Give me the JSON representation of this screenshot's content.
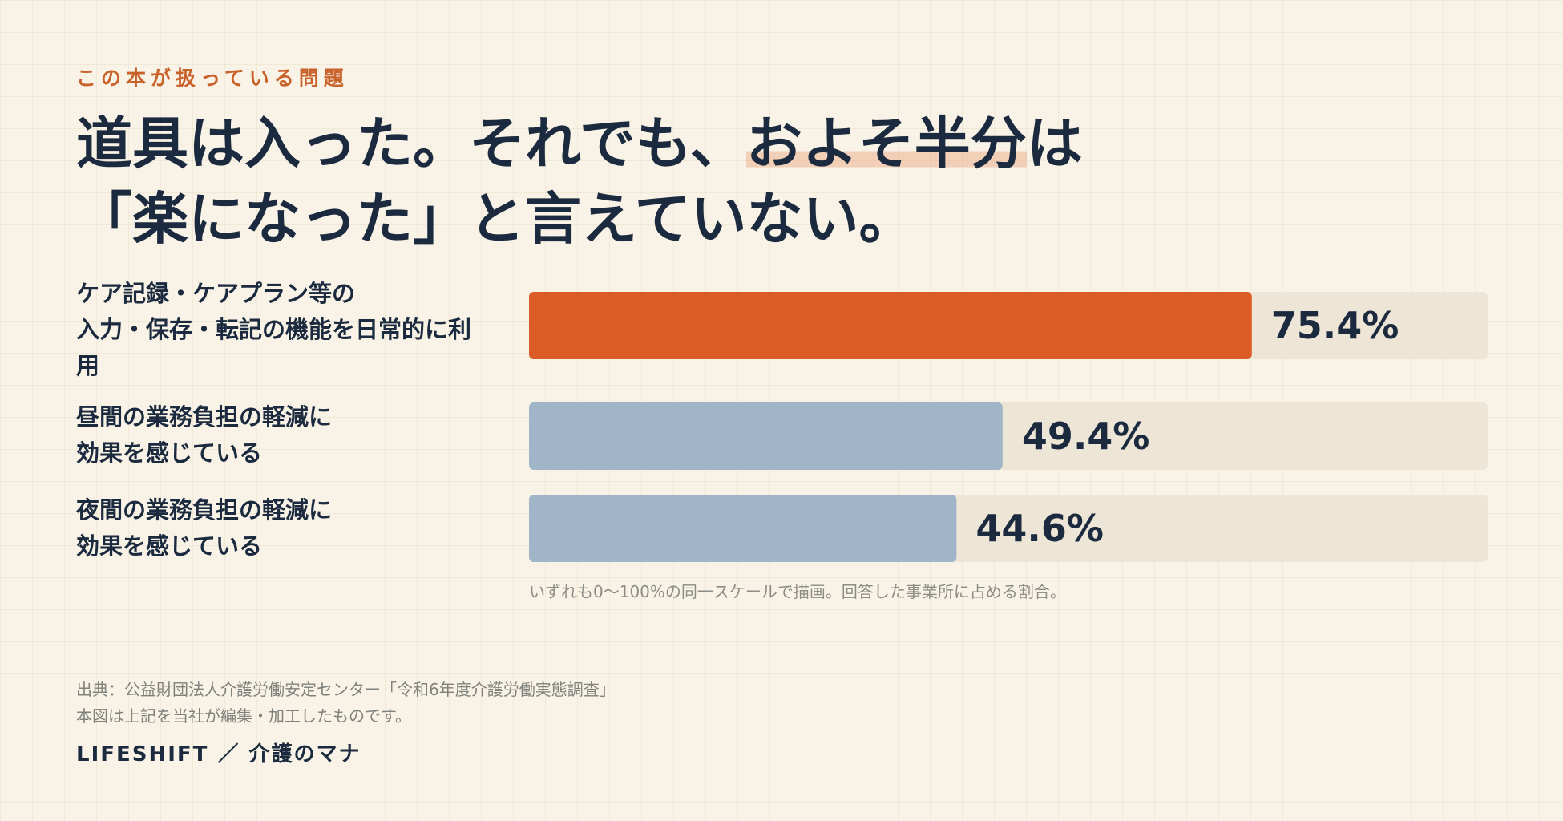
{
  "eyebrow": "この本が扱っている問題",
  "headline": {
    "line1_pre": "道具は入った。それでも、",
    "line1_highlight": "およそ半分",
    "line1_post": "は",
    "line2": "「楽になった」と言えていない。"
  },
  "chart_data": {
    "type": "bar",
    "orientation": "horizontal",
    "categories": [
      "ケア記録・ケアプラン等の入力・保存・転記の機能を日常的に利用",
      "昼間の業務負担の軽減に効果を感じている",
      "夜間の業務負担の軽減に効果を感じている"
    ],
    "category_lines": [
      [
        "ケア記録・ケアプラン等の",
        "入力・保存・転記の機能を日常的に利",
        "用"
      ],
      [
        "昼間の業務負担の軽減に",
        "効果を感じている"
      ],
      [
        "夜間の業務負担の軽減に",
        "効果を感じている"
      ]
    ],
    "values": [
      75.4,
      49.4,
      44.6
    ],
    "value_labels": [
      "75.4%",
      "49.4%",
      "44.6%"
    ],
    "xlim": [
      0,
      100
    ],
    "colors": [
      "#dc5c27",
      "#a0b5c7",
      "#a0b5c7"
    ],
    "track_color": "#ede5d5",
    "grid": false,
    "legend": "none"
  },
  "note": "いずれも0〜100%の同一スケールで描画。回答した事業所に占める割合。",
  "source": {
    "line1": "出典：公益財団法人介護労働安定センター「令和6年度介護労働実態調査」",
    "line2": "本図は上記を当社が編集・加工したものです。"
  },
  "brand": "LIFESHIFT ／ 介護のマナ"
}
